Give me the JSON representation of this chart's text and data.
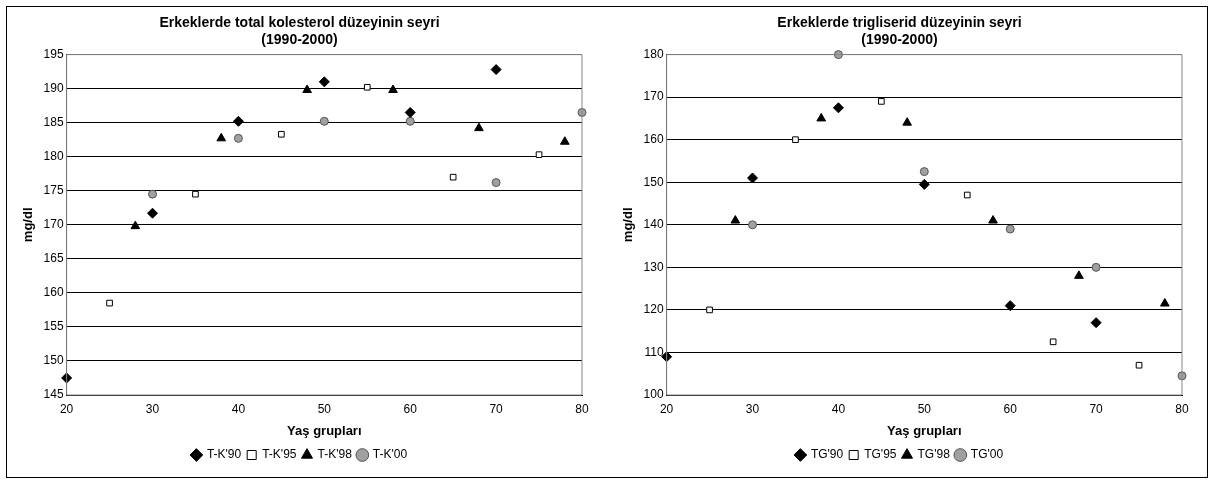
{
  "chart_data": [
    {
      "type": "scatter",
      "title": "Erkeklerde total kolesterol düzeyinin seyri\n(1990-2000)",
      "xlabel": "Yaş grupları",
      "ylabel": "mg/dl",
      "xlim": [
        20,
        80
      ],
      "xticks": [
        20,
        30,
        40,
        50,
        60,
        70,
        80
      ],
      "ylim": [
        145,
        195
      ],
      "yticks": [
        145,
        150,
        155,
        160,
        165,
        170,
        175,
        180,
        185,
        190,
        195
      ],
      "grid": "y",
      "legend": "bottom",
      "series": [
        {
          "name": "T-K'90",
          "color": "#000000",
          "marker": "diamond",
          "x": [
            20,
            30,
            40,
            50,
            60,
            70
          ],
          "values": [
            147.5,
            171.7,
            185.2,
            191,
            186.5,
            192.8
          ]
        },
        {
          "name": "T-K'95",
          "color": "#ffffff",
          "marker": "square",
          "x": [
            25,
            35,
            45,
            55,
            65,
            75
          ],
          "values": [
            158.5,
            174.5,
            183.3,
            190.2,
            177,
            180.3
          ]
        },
        {
          "name": "T-K'98",
          "color": "#000000",
          "marker": "triangle",
          "x": [
            28,
            38,
            48,
            58,
            68,
            78
          ],
          "values": [
            169.8,
            182.7,
            189.8,
            189.8,
            184.2,
            182.2
          ]
        },
        {
          "name": "T-K'00",
          "color": "#a0a0a0",
          "marker": "circle",
          "x": [
            30,
            40,
            50,
            60,
            70,
            80
          ],
          "values": [
            174.5,
            182.7,
            185.2,
            185.2,
            176.2,
            186.5
          ]
        }
      ]
    },
    {
      "type": "scatter",
      "title": "Erkeklerde trigliserid düzeyinin seyri\n(1990-2000)",
      "xlabel": "Yaş grupları",
      "ylabel": "mg/dl",
      "xlim": [
        20,
        80
      ],
      "xticks": [
        20,
        30,
        40,
        50,
        60,
        70,
        80
      ],
      "ylim": [
        100,
        180
      ],
      "yticks": [
        100,
        110,
        120,
        130,
        140,
        150,
        160,
        170,
        180
      ],
      "grid": "y",
      "legend": "bottom",
      "series": [
        {
          "name": "TG'90",
          "color": "#000000",
          "marker": "diamond",
          "x": [
            20,
            30,
            40,
            50,
            60,
            70
          ],
          "values": [
            109,
            151,
            167.5,
            149.5,
            121,
            117
          ]
        },
        {
          "name": "TG'95",
          "color": "#ffffff",
          "marker": "square",
          "x": [
            25,
            35,
            45,
            55,
            65,
            75
          ],
          "values": [
            120,
            160,
            169,
            147,
            112.5,
            107
          ]
        },
        {
          "name": "TG'98",
          "color": "#000000",
          "marker": "triangle",
          "x": [
            28,
            38,
            48,
            58,
            68,
            78
          ],
          "values": [
            141,
            165,
            164,
            141,
            128,
            121.5
          ]
        },
        {
          "name": "TG'00",
          "color": "#a0a0a0",
          "marker": "circle",
          "x": [
            30,
            40,
            50,
            60,
            70,
            80
          ],
          "values": [
            140,
            180,
            152.5,
            139,
            130,
            104.5
          ]
        }
      ]
    }
  ]
}
